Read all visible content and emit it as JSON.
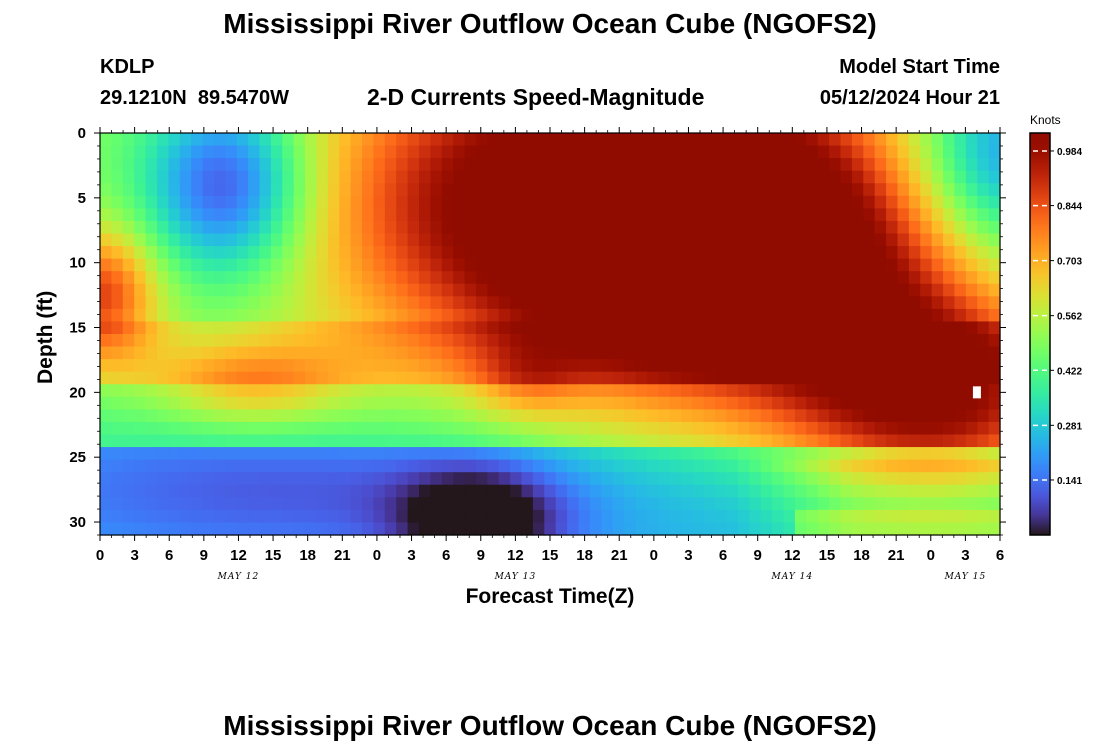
{
  "header": {
    "title": "Mississippi River Outflow Ocean Cube (NGOFS2)",
    "station_id": "KDLP",
    "station_coords": "29.1210N  89.5470W",
    "subtitle": "2-D Currents Speed-Magnitude",
    "model_start_label": "Model Start Time",
    "model_start_value": "05/12/2024 Hour 21"
  },
  "footer": {
    "title": "Mississippi River Outflow Ocean Cube (NGOFS2)"
  },
  "chart_data": {
    "type": "heatmap",
    "title": "2-D Currents Speed-Magnitude",
    "xlabel": "Forecast Time(Z)",
    "ylabel": "Depth (ft)",
    "x_unit": "hours from May 12 00Z",
    "x_range": [
      0,
      78
    ],
    "x_tick_values": [
      0,
      3,
      6,
      9,
      12,
      15,
      18,
      21,
      24,
      27,
      30,
      33,
      36,
      39,
      42,
      45,
      48,
      51,
      54,
      57,
      60,
      63,
      66,
      69,
      72,
      75,
      78
    ],
    "x_tick_labels": [
      "0",
      "3",
      "6",
      "9",
      "12",
      "15",
      "18",
      "21",
      "0",
      "3",
      "6",
      "9",
      "12",
      "15",
      "18",
      "21",
      "0",
      "3",
      "6",
      "9",
      "12",
      "15",
      "18",
      "21",
      "0",
      "3",
      "6"
    ],
    "date_labels": [
      {
        "text": "MAY 12",
        "x": 12
      },
      {
        "text": "MAY 13",
        "x": 36
      },
      {
        "text": "MAY 14",
        "x": 60
      },
      {
        "text": "MAY 15",
        "x": 75
      }
    ],
    "y_range": [
      0,
      31
    ],
    "y_inverted": true,
    "y_ticks": [
      0,
      5,
      10,
      15,
      20,
      25,
      30
    ],
    "colorbar": {
      "title": "Knots",
      "range": [
        0.0,
        1.03
      ],
      "ticks": [
        "0.141",
        "0.281",
        "0.422",
        "0.562",
        "0.703",
        "0.844",
        "0.984"
      ],
      "tick_values": [
        0.141,
        0.281,
        0.422,
        0.562,
        0.703,
        0.844,
        0.984
      ],
      "colormap": "turbo"
    },
    "marker": {
      "x": 76,
      "y": 20
    },
    "field_cols": 79,
    "field_rows": 32,
    "field_components": [
      {
        "x": 11,
        "y": 4,
        "sx": 5,
        "sy": 5,
        "a": -0.45
      },
      {
        "x": 0,
        "y": 12.5,
        "sx": 3.5,
        "sy": 3.5,
        "a": 0.38
      },
      {
        "x": 13,
        "y": 19.5,
        "sx": 6,
        "sy": 2.2,
        "a": 0.22
      },
      {
        "x": 41,
        "y": 5,
        "sx": 16,
        "sy": 9,
        "a": 0.58
      },
      {
        "x": 52,
        "y": 10,
        "sx": 12,
        "sy": 8,
        "a": 0.42
      },
      {
        "x": 74,
        "y": 20.5,
        "sx": 9,
        "sy": 5,
        "a": 0.45
      },
      {
        "x": 67,
        "y": 15,
        "sx": 8,
        "sy": 7,
        "a": 0.22
      },
      {
        "x": 37,
        "y": 19,
        "sx": 3,
        "sy": 2,
        "a": 0.12
      },
      {
        "x": 58,
        "y": 6,
        "sx": 8,
        "sy": 8,
        "a": 0.15
      },
      {
        "x": 78,
        "y": 2,
        "sx": 5,
        "sy": 5,
        "a": -0.32
      },
      {
        "x": 33,
        "y": 30,
        "sx": 5,
        "sy": 3,
        "a": -0.3
      },
      {
        "x": 18,
        "y": 27.5,
        "sx": 20,
        "sy": 4,
        "a": -0.15
      }
    ]
  }
}
